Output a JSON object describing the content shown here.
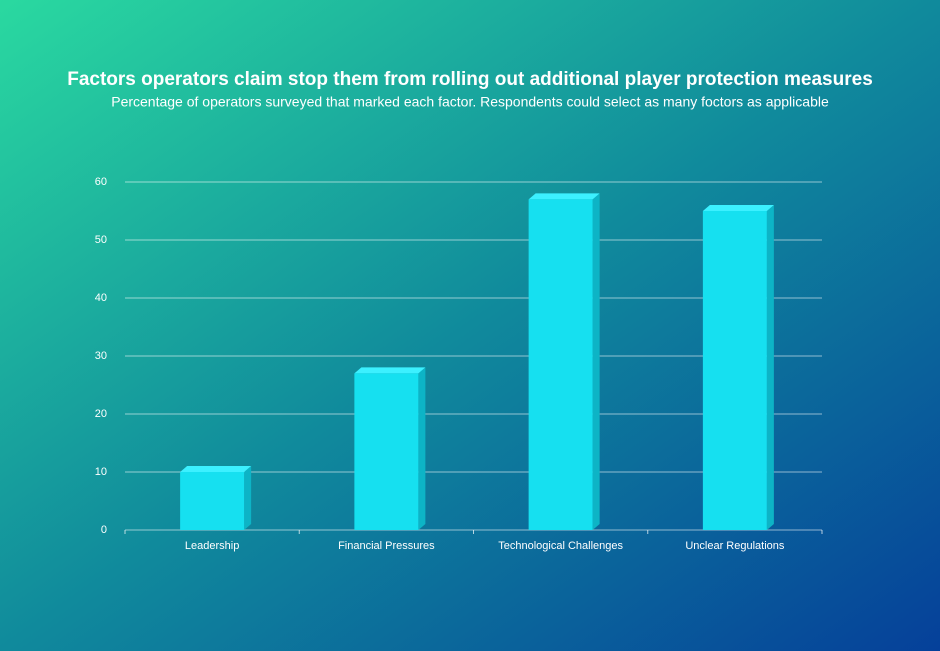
{
  "chart_data": {
    "type": "bar",
    "title": "Factors operators claim stop them from rolling out additional player protection measures",
    "subtitle": "Percentage of operators surveyed that marked each factor. Respondents could select as many foctors as applicable",
    "categories": [
      "Leadership",
      "Financial Pressures",
      "Technological Challenges",
      "Unclear Regulations"
    ],
    "values": [
      10,
      27,
      57,
      55
    ],
    "color": "#16e0f0",
    "ylim": [
      0,
      60
    ],
    "yticks": [
      0,
      10,
      20,
      30,
      40,
      50,
      60
    ],
    "grid": true
  }
}
